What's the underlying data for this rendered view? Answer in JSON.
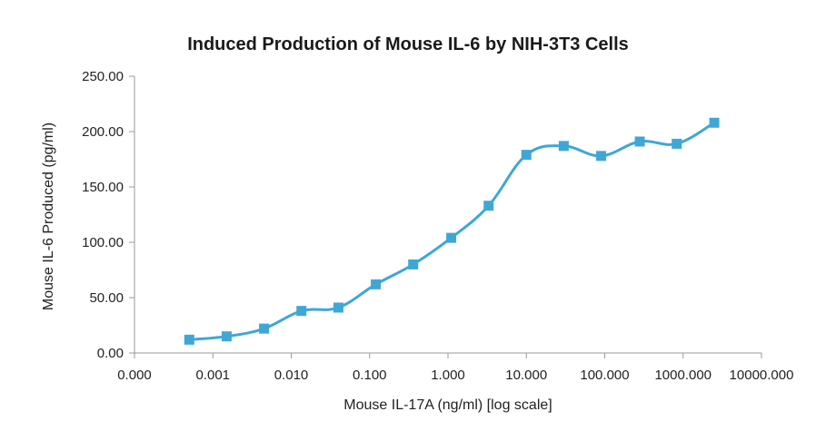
{
  "chart_data": {
    "type": "line",
    "title": "Induced Production of Mouse IL-6 by NIH-3T3 Cells",
    "xlabel": "Mouse IL-17A (ng/ml) [log scale]",
    "ylabel": "Mouse IL-6 Produced (pg/ml)",
    "x_scale": "log",
    "x_ticks": [
      "0.000",
      "0.001",
      "0.010",
      "0.100",
      "1.000",
      "10.000",
      "100.000",
      "1000.000",
      "10000.000"
    ],
    "y_ticks": [
      "0.00",
      "50.00",
      "100.00",
      "150.00",
      "200.00",
      "250.00"
    ],
    "ylim": [
      0,
      250
    ],
    "grid": false,
    "legend": "none",
    "series_color": "#3fa7d6",
    "series": [
      {
        "x": [
          0.0005,
          0.0015,
          0.0045,
          0.0135,
          0.04,
          0.12,
          0.36,
          1.1,
          3.3,
          10,
          30,
          90,
          280,
          830,
          2500
        ],
        "values": [
          12,
          15,
          22,
          38,
          41,
          62,
          80,
          104,
          133,
          179,
          187,
          178,
          191,
          189,
          208
        ]
      }
    ]
  }
}
